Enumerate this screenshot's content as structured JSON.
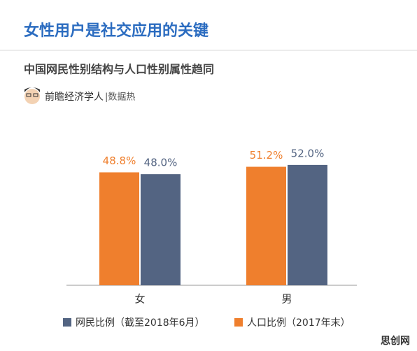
{
  "header": {
    "title": "女性用户是社交应用的关键",
    "author": "前瞻经济学人",
    "source": "|数据热"
  },
  "watermark": "思创网",
  "chart_data": {
    "type": "bar",
    "title": "中国网民性别结构与人口性别属性趋同",
    "categories": [
      "女",
      "男"
    ],
    "series": [
      {
        "name": "人口比例（2017年末）",
        "color": "#ef7f2d",
        "values": [
          48.8,
          51.2
        ],
        "value_labels": [
          "48.8%",
          "51.2%"
        ]
      },
      {
        "name": "网民比例（截至2018年6月）",
        "color": "#536482",
        "values": [
          48.0,
          52.0
        ],
        "value_labels": [
          "48.0%",
          "52.0%"
        ]
      }
    ]
  }
}
